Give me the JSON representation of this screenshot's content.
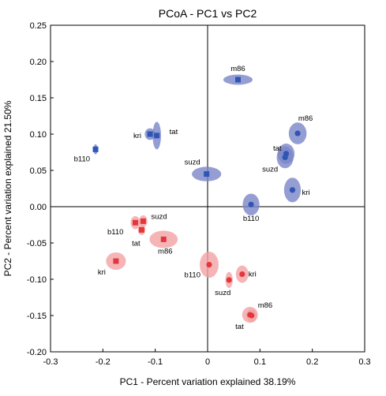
{
  "chart_data": {
    "type": "scatter",
    "title": "PCoA - PC1 vs PC2",
    "xlabel": "PC1 - Percent variation explained 38.19%",
    "ylabel": "PC2 - Percent variation explained 21.50%",
    "xlim": [
      -0.3,
      0.3
    ],
    "ylim": [
      -0.2,
      0.25
    ],
    "xticks": [
      "-0.3",
      "-0.2",
      "-0.1",
      "0",
      "0.1",
      "0.2",
      "0.3"
    ],
    "yticks": [
      "0.25",
      "0.20",
      "0.15",
      "0.10",
      "0.05",
      "0.00",
      "-0.05",
      "-0.10",
      "-0.15",
      "-0.20"
    ],
    "grid": false,
    "zero_lines": true,
    "colors": {
      "blue": "#2f55b5",
      "blue_ellipse": "#7a86c8",
      "red": "#e2383c",
      "red_ellipse": "#f2a3a5"
    },
    "series": [
      {
        "color": "blue",
        "points": [
          {
            "label": "m86",
            "x": 0.058,
            "y": 0.175,
            "marker": "square",
            "rx": 0.028,
            "ry": 0.007
          },
          {
            "label": "kri",
            "x": -0.11,
            "y": 0.1,
            "marker": "square",
            "rx": 0.01,
            "ry": 0.008
          },
          {
            "label": "tat",
            "x": -0.097,
            "y": 0.098,
            "marker": "square",
            "rx": 0.008,
            "ry": 0.019
          },
          {
            "label": "b110",
            "x": -0.214,
            "y": 0.079,
            "marker": "square",
            "rx": 0.004,
            "ry": 0.007
          },
          {
            "label": "suzd",
            "x": -0.002,
            "y": 0.045,
            "marker": "square",
            "rx": 0.028,
            "ry": 0.01
          },
          {
            "label": "m86",
            "x": 0.172,
            "y": 0.101,
            "marker": "circle",
            "rx": 0.017,
            "ry": 0.015
          },
          {
            "label": "tat",
            "x": 0.15,
            "y": 0.073,
            "marker": "circle",
            "rx": 0.016,
            "ry": 0.014
          },
          {
            "label": "suzd",
            "x": 0.148,
            "y": 0.068,
            "marker": "circle",
            "rx": 0.016,
            "ry": 0.015
          },
          {
            "label": "kri",
            "x": 0.162,
            "y": 0.023,
            "marker": "circle",
            "rx": 0.016,
            "ry": 0.017
          },
          {
            "label": "b110",
            "x": 0.083,
            "y": 0.003,
            "marker": "circle",
            "rx": 0.016,
            "ry": 0.015
          }
        ]
      },
      {
        "color": "red",
        "points": [
          {
            "label": "b110",
            "x": -0.138,
            "y": -0.022,
            "marker": "square",
            "rx": 0.009,
            "ry": 0.009
          },
          {
            "label": "suzd",
            "x": -0.123,
            "y": -0.02,
            "marker": "square",
            "rx": 0.008,
            "ry": 0.008
          },
          {
            "label": "tat",
            "x": -0.126,
            "y": -0.032,
            "marker": "square",
            "rx": 0.007,
            "ry": 0.007
          },
          {
            "label": "m86",
            "x": -0.084,
            "y": -0.045,
            "marker": "square",
            "rx": 0.027,
            "ry": 0.012
          },
          {
            "label": "kri",
            "x": -0.175,
            "y": -0.075,
            "marker": "square",
            "rx": 0.019,
            "ry": 0.012
          },
          {
            "label": "b110",
            "x": 0.003,
            "y": -0.08,
            "marker": "circle",
            "rx": 0.018,
            "ry": 0.018
          },
          {
            "label": "kri",
            "x": 0.066,
            "y": -0.093,
            "marker": "circle",
            "rx": 0.012,
            "ry": 0.012
          },
          {
            "label": "suzd",
            "x": 0.041,
            "y": -0.101,
            "marker": "circle",
            "rx": 0.007,
            "ry": 0.011
          },
          {
            "label": "m86",
            "x": 0.081,
            "y": -0.149,
            "marker": "circle",
            "rx": 0.015,
            "ry": 0.011
          },
          {
            "label": "tat",
            "x": 0.084,
            "y": -0.15,
            "marker": "circle",
            "rx": 0.01,
            "ry": 0.009
          }
        ]
      }
    ]
  }
}
